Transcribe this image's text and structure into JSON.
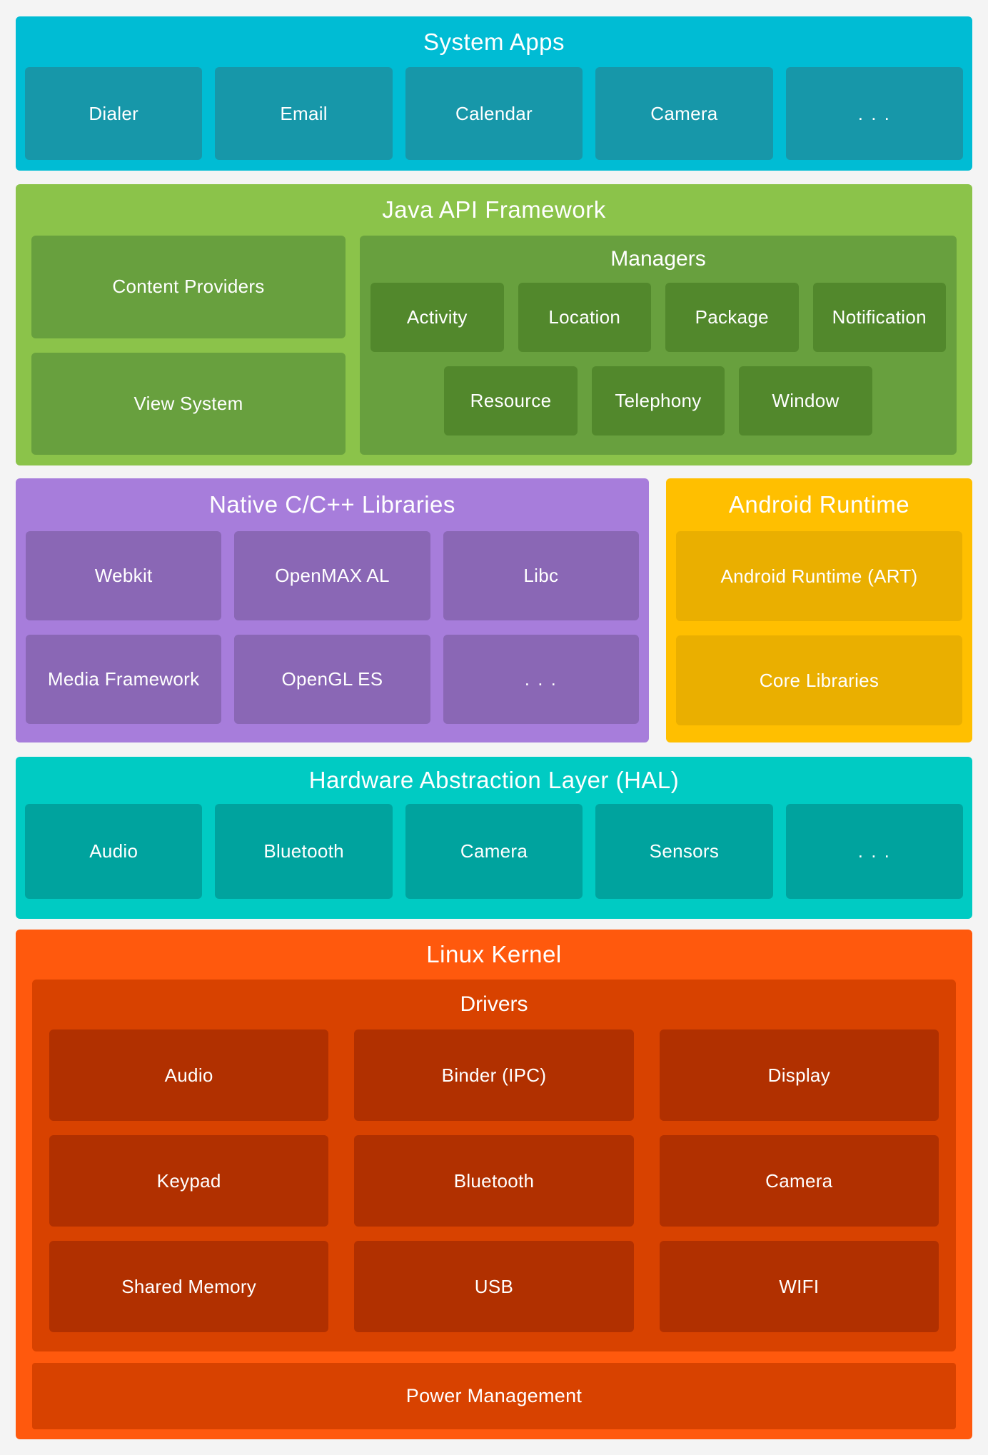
{
  "colors": {
    "page-bg": "#f4f4f4",
    "sysapps-bg": "#00bcd4",
    "sysapps-box": "#1797a9",
    "java-bg": "#8bc34a",
    "java-panel": "#68a03e",
    "java-box": "#52882c",
    "native-bg": "#a77ddb",
    "native-box": "#8a67b5",
    "runtime-bg": "#ffbf00",
    "runtime-box": "#eaaf00",
    "hal-bg": "#00cbc3",
    "hal-box": "#00a39e",
    "kernel-bg": "#ff590d",
    "kernel-panel": "#d84200",
    "kernel-box": "#b13000"
  },
  "diagram": {
    "system_apps": {
      "title": "System Apps",
      "boxes": [
        "Dialer",
        "Email",
        "Calendar",
        "Camera",
        ". . ."
      ]
    },
    "java_api_framework": {
      "title": "Java API Framework",
      "left_boxes": [
        "Content Providers",
        "View System"
      ],
      "managers": {
        "title": "Managers",
        "row1": [
          "Activity",
          "Location",
          "Package",
          "Notification"
        ],
        "row2": [
          "Resource",
          "Telephony",
          "Window"
        ]
      }
    },
    "native_libraries": {
      "title": "Native C/C++ Libraries",
      "row1": [
        "Webkit",
        "OpenMAX AL",
        "Libc"
      ],
      "row2": [
        "Media Framework",
        "OpenGL ES",
        ". . ."
      ]
    },
    "android_runtime": {
      "title": "Android Runtime",
      "boxes": [
        "Android Runtime (ART)",
        "Core Libraries"
      ]
    },
    "hal": {
      "title": "Hardware Abstraction Layer (HAL)",
      "boxes": [
        "Audio",
        "Bluetooth",
        "Camera",
        "Sensors",
        ". . ."
      ]
    },
    "linux_kernel": {
      "title": "Linux Kernel",
      "drivers": {
        "title": "Drivers",
        "row1": [
          "Audio",
          "Binder (IPC)",
          "Display"
        ],
        "row2": [
          "Keypad",
          "Bluetooth",
          "Camera"
        ],
        "row3": [
          "Shared Memory",
          "USB",
          "WIFI"
        ]
      },
      "power_management": "Power Management"
    }
  }
}
